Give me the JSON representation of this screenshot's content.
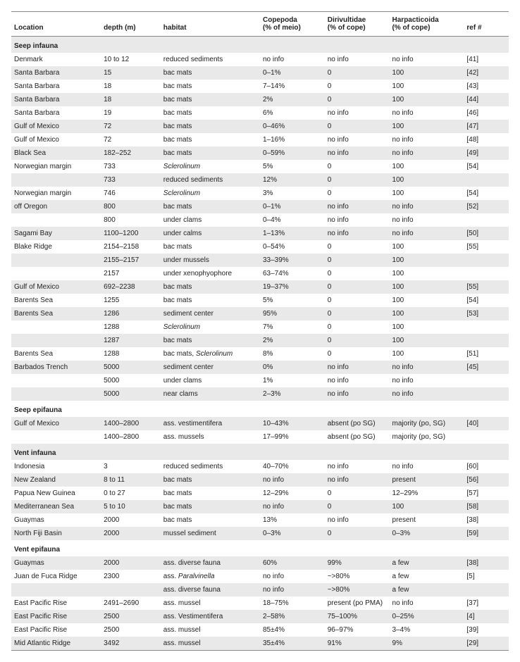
{
  "table": {
    "columns": [
      {
        "label": "Location",
        "sub": ""
      },
      {
        "label": "depth (m)",
        "sub": ""
      },
      {
        "label": "habitat",
        "sub": ""
      },
      {
        "label": "Copepoda",
        "sub": "(% of meio)"
      },
      {
        "label": "Dirivultidae",
        "sub": "(% of cope)"
      },
      {
        "label": "Harpacticoida",
        "sub": "(% of cope)"
      },
      {
        "label": "ref #",
        "sub": ""
      }
    ],
    "rows": [
      {
        "type": "section",
        "alt": true,
        "cells": [
          "Seep infauna",
          "",
          "",
          "",
          "",
          "",
          ""
        ]
      },
      {
        "type": "data",
        "alt": false,
        "cells": [
          "Denmark",
          "10 to 12",
          "reduced sediments",
          "no info",
          "no info",
          "no info",
          "[41]"
        ]
      },
      {
        "type": "data",
        "alt": true,
        "cells": [
          "Santa Barbara",
          "15",
          "bac mats",
          "0–1%",
          "0",
          "100",
          "[42]"
        ]
      },
      {
        "type": "data",
        "alt": false,
        "cells": [
          "Santa Barbara",
          "18",
          "bac mats",
          "7–14%",
          "0",
          "100",
          "[43]"
        ]
      },
      {
        "type": "data",
        "alt": true,
        "cells": [
          "Santa Barbara",
          "18",
          "bac mats",
          "2%",
          "0",
          "100",
          "[44]"
        ]
      },
      {
        "type": "data",
        "alt": false,
        "cells": [
          "Santa Barbara",
          "19",
          "bac mats",
          "6%",
          "no info",
          "no info",
          "[46]"
        ]
      },
      {
        "type": "data",
        "alt": true,
        "cells": [
          "Gulf of Mexico",
          "72",
          "bac mats",
          "0–46%",
          "0",
          "100",
          "[47]"
        ]
      },
      {
        "type": "data",
        "alt": false,
        "cells": [
          "Gulf of Mexico",
          "72",
          "bac mats",
          "1–16%",
          "no info",
          "no info",
          "[48]"
        ]
      },
      {
        "type": "data",
        "alt": true,
        "cells": [
          "Black Sea",
          "182–252",
          "bac mats",
          "0–59%",
          "no info",
          "no info",
          "[49]"
        ]
      },
      {
        "type": "data",
        "alt": false,
        "cells": [
          "Norwegian margin",
          "733",
          {
            "text": "Sclerolinum",
            "italic": true
          },
          "5%",
          "0",
          "100",
          "[54]"
        ]
      },
      {
        "type": "data",
        "alt": true,
        "cells": [
          "",
          "733",
          "reduced sediments",
          "12%",
          "0",
          "100",
          ""
        ]
      },
      {
        "type": "data",
        "alt": false,
        "cells": [
          "Norwegian margin",
          "746",
          {
            "text": "Sclerolinum",
            "italic": true
          },
          "3%",
          "0",
          "100",
          "[54]"
        ]
      },
      {
        "type": "data",
        "alt": true,
        "cells": [
          "off Oregon",
          "800",
          "bac mats",
          "0–1%",
          "no info",
          "no info",
          "[52]"
        ]
      },
      {
        "type": "data",
        "alt": false,
        "cells": [
          "",
          "800",
          "under clams",
          "0–4%",
          "no info",
          "no info",
          ""
        ]
      },
      {
        "type": "data",
        "alt": true,
        "cells": [
          "Sagami Bay",
          "1100–1200",
          "under calms",
          "1–13%",
          "no info",
          "no info",
          "[50]"
        ]
      },
      {
        "type": "data",
        "alt": false,
        "cells": [
          "Blake Ridge",
          "2154–2158",
          "bac mats",
          "0–54%",
          "0",
          "100",
          "[55]"
        ]
      },
      {
        "type": "data",
        "alt": true,
        "cells": [
          "",
          "2155–2157",
          "under mussels",
          "33–39%",
          "0",
          "100",
          ""
        ]
      },
      {
        "type": "data",
        "alt": false,
        "cells": [
          "",
          "2157",
          "under xenophyophore",
          "63–74%",
          "0",
          "100",
          ""
        ]
      },
      {
        "type": "data",
        "alt": true,
        "cells": [
          "Gulf of Mexico",
          "692–2238",
          "bac mats",
          "19–37%",
          "0",
          "100",
          "[55]"
        ]
      },
      {
        "type": "data",
        "alt": false,
        "cells": [
          "Barents Sea",
          "1255",
          "bac mats",
          "5%",
          "0",
          "100",
          "[54]"
        ]
      },
      {
        "type": "data",
        "alt": true,
        "cells": [
          "Barents Sea",
          "1286",
          "sediment center",
          "95%",
          "0",
          "100",
          "[53]"
        ]
      },
      {
        "type": "data",
        "alt": false,
        "cells": [
          "",
          "1288",
          {
            "text": "Sclerolinum",
            "italic": true
          },
          "7%",
          "0",
          "100",
          ""
        ]
      },
      {
        "type": "data",
        "alt": true,
        "cells": [
          "",
          "1287",
          "bac mats",
          "2%",
          "0",
          "100",
          ""
        ]
      },
      {
        "type": "data",
        "alt": false,
        "cells": [
          "Barents Sea",
          "1288",
          {
            "html": "bac mats, <span class=\"italic\">Sclerolinum</span>"
          },
          "8%",
          "0",
          "100",
          "[51]"
        ]
      },
      {
        "type": "data",
        "alt": true,
        "cells": [
          "Barbados Trench",
          "5000",
          "sediment center",
          "0%",
          "no info",
          "no info",
          "[45]"
        ]
      },
      {
        "type": "data",
        "alt": false,
        "cells": [
          "",
          "5000",
          "under clams",
          "1%",
          "no info",
          "no info",
          ""
        ]
      },
      {
        "type": "data",
        "alt": true,
        "cells": [
          "",
          "5000",
          "near clams",
          "2–3%",
          "no info",
          "no info",
          ""
        ]
      },
      {
        "type": "section",
        "alt": false,
        "cells": [
          "Seep epifauna",
          "",
          "",
          "",
          "",
          "",
          ""
        ]
      },
      {
        "type": "data",
        "alt": true,
        "cells": [
          "Gulf of Mexico",
          "1400–2800",
          "ass. vestimentifera",
          "10–43%",
          "absent (po SG)",
          "majority (po, SG)",
          "[40]"
        ]
      },
      {
        "type": "data",
        "alt": false,
        "cells": [
          "",
          "1400–2800",
          "ass. mussels",
          "17–99%",
          "absent (po SG)",
          "majority (po, SG)",
          ""
        ]
      },
      {
        "type": "section",
        "alt": true,
        "cells": [
          "Vent infauna",
          "",
          "",
          "",
          "",
          "",
          ""
        ]
      },
      {
        "type": "data",
        "alt": false,
        "cells": [
          "Indonesia",
          "3",
          "reduced sediments",
          "40–70%",
          "no info",
          "no info",
          "[60]"
        ]
      },
      {
        "type": "data",
        "alt": true,
        "cells": [
          "New Zealand",
          "8 to 11",
          "bac mats",
          "no info",
          "no info",
          "present",
          "[56]"
        ]
      },
      {
        "type": "data",
        "alt": false,
        "cells": [
          "Papua New Guinea",
          "0 to 27",
          "bac mats",
          "12–29%",
          "0",
          "12–29%",
          "[57]"
        ]
      },
      {
        "type": "data",
        "alt": true,
        "cells": [
          "Mediterranean Sea",
          "5 to 10",
          "bac mats",
          "no info",
          "0",
          "100",
          "[58]"
        ]
      },
      {
        "type": "data",
        "alt": false,
        "cells": [
          "Guaymas",
          "2000",
          "bac mats",
          "13%",
          "no info",
          "present",
          "[38]"
        ]
      },
      {
        "type": "data",
        "alt": true,
        "cells": [
          "North Fiji Basin",
          "2000",
          "mussel sediment",
          "0–3%",
          "0",
          "0–3%",
          "[59]"
        ]
      },
      {
        "type": "section",
        "alt": false,
        "cells": [
          "Vent epifauna",
          "",
          "",
          "",
          "",
          "",
          ""
        ]
      },
      {
        "type": "data",
        "alt": true,
        "cells": [
          "Guaymas",
          "2000",
          "ass. diverse fauna",
          "60%",
          "99%",
          "a few",
          "[38]"
        ]
      },
      {
        "type": "data",
        "alt": false,
        "cells": [
          "Juan de Fuca Ridge",
          "2300",
          {
            "html": "ass. <span class=\"italic\">Paralvinella</span>"
          },
          "no info",
          "~>80%",
          "a few",
          "[5]"
        ]
      },
      {
        "type": "data",
        "alt": true,
        "cells": [
          "",
          "",
          "ass. diverse fauna",
          "no info",
          "~>80%",
          "a few",
          ""
        ]
      },
      {
        "type": "data",
        "alt": false,
        "cells": [
          "East Pacific Rise",
          "2491–2690",
          "ass. mussel",
          "18–75%",
          "present (po PMA)",
          "no info",
          "[37]"
        ]
      },
      {
        "type": "data",
        "alt": true,
        "cells": [
          "East Pacific Rise",
          "2500",
          "ass. Vestimentifera",
          "2–58%",
          "75–100%",
          "0–25%",
          "[4]"
        ]
      },
      {
        "type": "data",
        "alt": false,
        "cells": [
          "East Pacific Rise",
          "2500",
          "ass. mussel",
          "85±4%",
          "96–97%",
          "3–4%",
          "[39]"
        ]
      },
      {
        "type": "data",
        "alt": true,
        "cells": [
          "Mid Atlantic Ridge",
          "3492",
          "ass. mussel",
          "35±4%",
          "91%",
          "9%",
          "[29]"
        ]
      }
    ]
  }
}
